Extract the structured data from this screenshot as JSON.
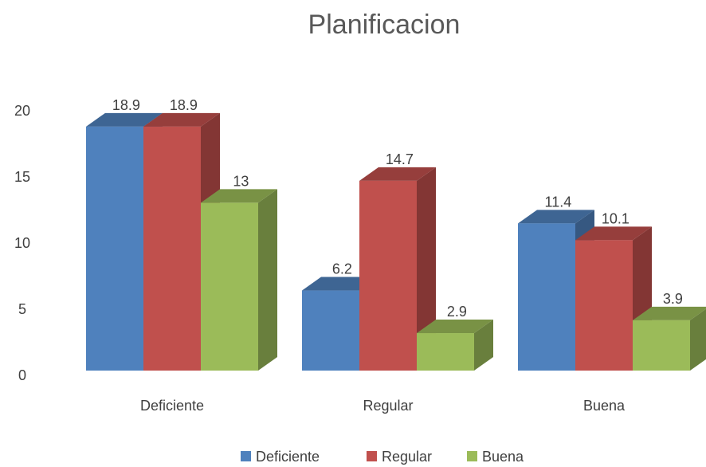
{
  "chart_data": {
    "type": "bar",
    "title": "Planificacion",
    "xlabel": "",
    "ylabel": "",
    "categories": [
      "Deficiente",
      "Regular",
      "Buena"
    ],
    "series": [
      {
        "name": "Deficiente",
        "values": [
          18.9,
          6.2,
          11.4
        ],
        "color": "#4f81bd"
      },
      {
        "name": "Regular",
        "values": [
          18.9,
          14.7,
          10.1
        ],
        "color": "#c0504d"
      },
      {
        "name": "Buena",
        "values": [
          13,
          2.9,
          3.9
        ],
        "color": "#9bbb59"
      }
    ],
    "yticks": [
      "0",
      "5",
      "10",
      "15",
      "20"
    ],
    "ylim": [
      0,
      20
    ],
    "style": "3d-clustered-column",
    "grid": false,
    "legend_position": "bottom"
  }
}
